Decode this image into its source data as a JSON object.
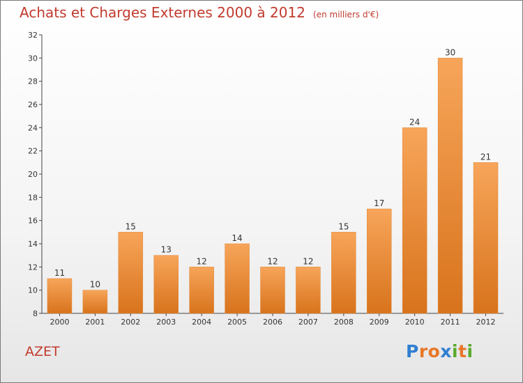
{
  "header": {
    "title": "Achats et Charges Externes 2000 à 2012",
    "subtitle": "(en milliers d'€)"
  },
  "commune_label": "AZET",
  "logo": {
    "text": "Proxiti",
    "letter_colors": [
      "#2f7fd0",
      "#e8772a",
      "#e8772a",
      "#2f7fd0",
      "#5aab2e",
      "#e8772a",
      "#5aab2e"
    ]
  },
  "colors": {
    "bar_top": "#f7a55a",
    "bar_bottom": "#d8731c",
    "axis": "#444444",
    "grid": "#d0d0d0",
    "title": "#c23a2e"
  },
  "chart_data": {
    "type": "bar",
    "categories": [
      "2000",
      "2001",
      "2002",
      "2003",
      "2004",
      "2005",
      "2006",
      "2007",
      "2008",
      "2009",
      "2010",
      "2011",
      "2012"
    ],
    "values": [
      11,
      10,
      15,
      13,
      12,
      14,
      12,
      12,
      15,
      17,
      24,
      30,
      21
    ],
    "ylim": [
      8,
      32
    ],
    "yticks": [
      8,
      10,
      12,
      14,
      16,
      18,
      20,
      22,
      24,
      26,
      28,
      30,
      32
    ],
    "grid": false,
    "data_labels": true
  }
}
